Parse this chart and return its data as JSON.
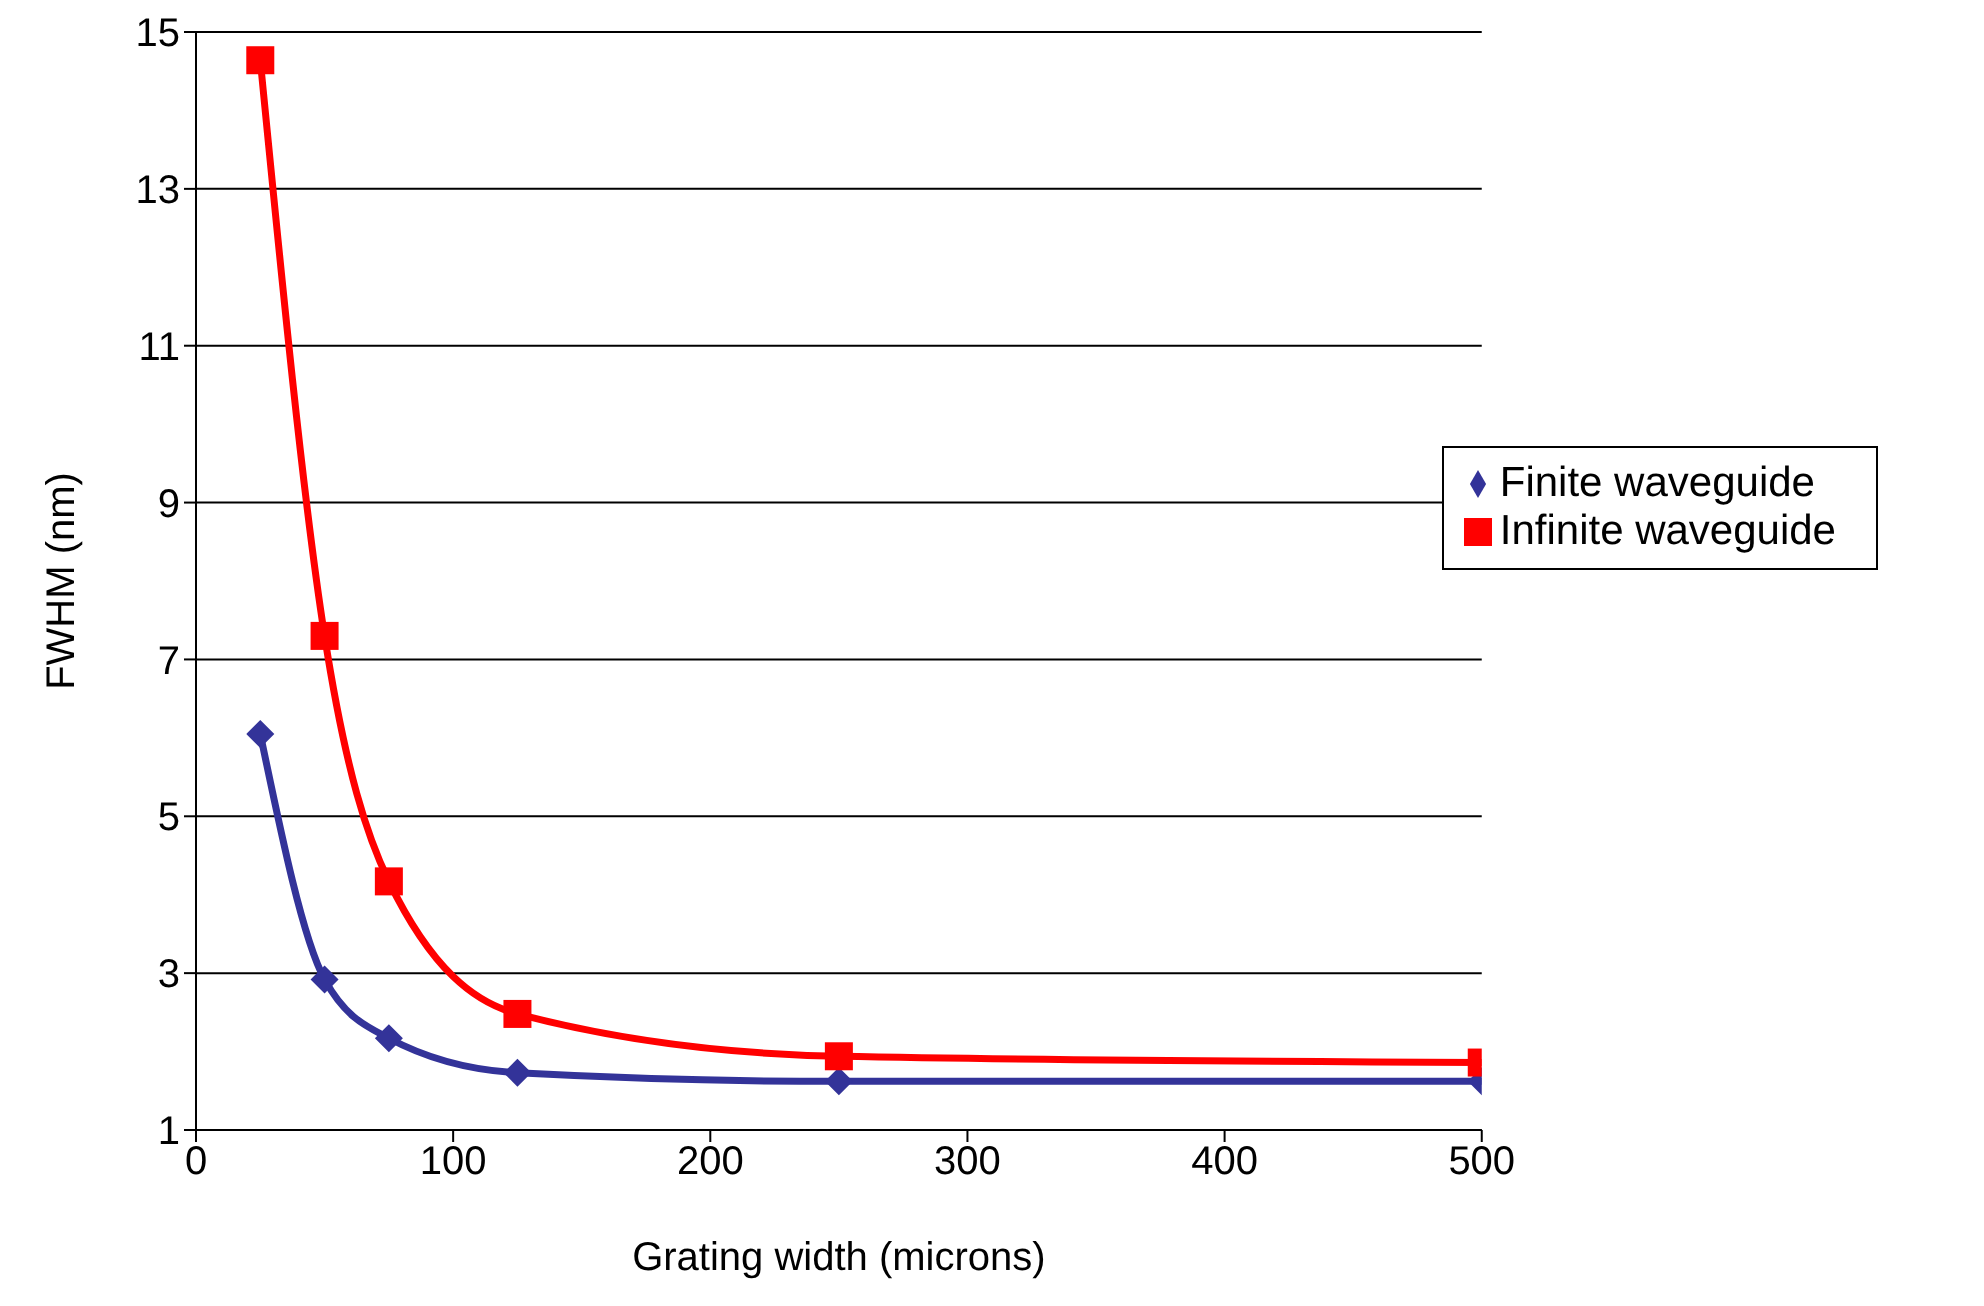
{
  "chart_data": {
    "type": "line",
    "xlabel": "Grating width (microns)",
    "ylabel": "FWHM (nm)",
    "x": [
      25,
      50,
      75,
      125,
      250,
      500
    ],
    "series": [
      {
        "name": "Finite waveguide",
        "color": "#333399",
        "marker": "diamond",
        "values": [
          6.05,
          2.92,
          2.17,
          1.73,
          1.62,
          1.62
        ]
      },
      {
        "name": "Infinite waveguide",
        "color": "#ff0000",
        "marker": "square",
        "values": [
          14.64,
          7.3,
          4.17,
          2.48,
          1.94,
          1.86
        ]
      }
    ],
    "xlim": [
      0,
      500
    ],
    "xticks": [
      0,
      100,
      200,
      300,
      400,
      500
    ],
    "ylim": [
      1,
      15
    ],
    "yticks": [
      1,
      3,
      5,
      7,
      9,
      11,
      13,
      15
    ],
    "grid": "y",
    "legend": "right",
    "line_style": "solid"
  }
}
